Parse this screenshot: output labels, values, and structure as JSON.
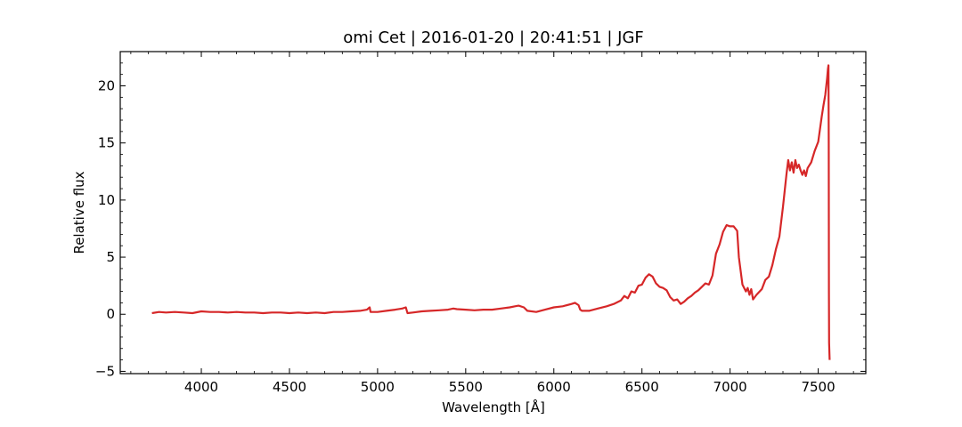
{
  "chart_data": {
    "type": "line",
    "title": "omi Cet | 2016-01-20 | 20:41:51 | JGF",
    "xlabel": "Wavelength [Å]",
    "ylabel": "Relative flux",
    "xlim": [
      3540,
      7770
    ],
    "ylim": [
      -5.2,
      23.0
    ],
    "xticks": [
      4000,
      4500,
      5000,
      5500,
      6000,
      6500,
      7000,
      7500
    ],
    "yticks": [
      -5,
      0,
      5,
      10,
      15,
      20
    ],
    "grid": false,
    "legend": "none",
    "series": [
      {
        "color": "#d62728",
        "x": [
          3720,
          3760,
          3800,
          3850,
          3900,
          3950,
          4000,
          4050,
          4100,
          4150,
          4200,
          4250,
          4300,
          4350,
          4400,
          4450,
          4500,
          4550,
          4600,
          4650,
          4700,
          4750,
          4800,
          4850,
          4900,
          4940,
          4955,
          4960,
          5000,
          5050,
          5100,
          5140,
          5160,
          5170,
          5200,
          5250,
          5300,
          5350,
          5400,
          5430,
          5450,
          5500,
          5550,
          5600,
          5650,
          5700,
          5750,
          5780,
          5800,
          5830,
          5850,
          5900,
          5950,
          6000,
          6050,
          6100,
          6120,
          6140,
          6150,
          6160,
          6200,
          6250,
          6300,
          6340,
          6380,
          6400,
          6420,
          6440,
          6460,
          6480,
          6500,
          6520,
          6540,
          6560,
          6580,
          6600,
          6620,
          6640,
          6660,
          6680,
          6700,
          6720,
          6740,
          6760,
          6780,
          6800,
          6820,
          6840,
          6860,
          6880,
          6900,
          6920,
          6940,
          6960,
          6980,
          7000,
          7020,
          7040,
          7050,
          7070,
          7090,
          7100,
          7110,
          7120,
          7130,
          7150,
          7180,
          7200,
          7220,
          7240,
          7260,
          7280,
          7300,
          7320,
          7330,
          7340,
          7350,
          7360,
          7370,
          7380,
          7390,
          7400,
          7410,
          7420,
          7430,
          7440,
          7460,
          7480,
          7500,
          7520,
          7530,
          7540,
          7550,
          7555,
          7558,
          7560,
          7561,
          7562,
          7565
        ],
        "y": [
          0.1,
          0.2,
          0.15,
          0.2,
          0.15,
          0.1,
          0.25,
          0.2,
          0.2,
          0.15,
          0.2,
          0.15,
          0.15,
          0.1,
          0.15,
          0.15,
          0.1,
          0.15,
          0.1,
          0.15,
          0.1,
          0.2,
          0.2,
          0.25,
          0.3,
          0.4,
          0.6,
          0.2,
          0.2,
          0.3,
          0.4,
          0.5,
          0.6,
          0.1,
          0.15,
          0.25,
          0.3,
          0.35,
          0.4,
          0.5,
          0.45,
          0.4,
          0.35,
          0.4,
          0.4,
          0.5,
          0.6,
          0.7,
          0.75,
          0.6,
          0.3,
          0.2,
          0.4,
          0.6,
          0.7,
          0.9,
          1.0,
          0.8,
          0.4,
          0.3,
          0.3,
          0.5,
          0.7,
          0.9,
          1.2,
          1.6,
          1.4,
          2.0,
          1.9,
          2.5,
          2.6,
          3.2,
          3.5,
          3.3,
          2.7,
          2.4,
          2.3,
          2.1,
          1.5,
          1.2,
          1.3,
          0.9,
          1.1,
          1.4,
          1.6,
          1.9,
          2.1,
          2.4,
          2.7,
          2.6,
          3.4,
          5.3,
          6.1,
          7.2,
          7.8,
          7.7,
          7.7,
          7.3,
          5.0,
          2.6,
          2.0,
          2.3,
          1.7,
          2.2,
          1.3,
          1.7,
          2.2,
          3.0,
          3.3,
          4.3,
          5.7,
          6.8,
          9.4,
          12.3,
          13.5,
          12.6,
          13.3,
          12.4,
          13.5,
          12.8,
          13.1,
          12.6,
          12.2,
          12.6,
          12.1,
          12.8,
          13.3,
          14.3,
          15.1,
          17.3,
          18.3,
          19.2,
          20.6,
          21.5,
          21.8,
          15.0,
          2.0,
          -2.5,
          -4.0
        ]
      }
    ]
  }
}
